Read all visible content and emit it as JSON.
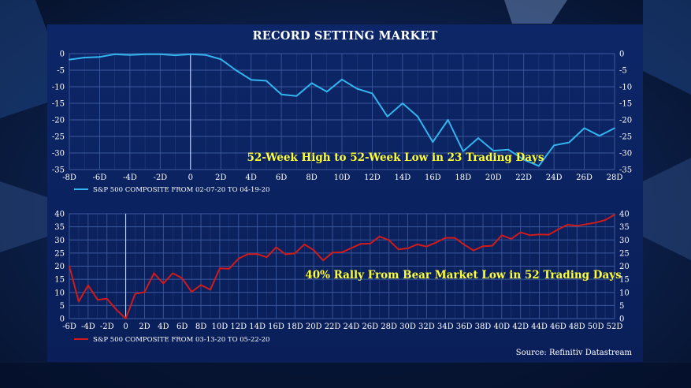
{
  "page": {
    "title": "RECORD SETTING MARKET",
    "source": "Source: Refinitiv Datastream"
  },
  "colors": {
    "panel": "#0b2161",
    "grid": "#3d5a9e",
    "series1": "#33b5f0",
    "series2": "#d11a1a",
    "annotation": "#ffff33"
  },
  "chart_data": [
    {
      "type": "line",
      "title": "",
      "x": [
        -8,
        -7,
        -6,
        -5,
        -4,
        -3,
        -2,
        -1,
        0,
        1,
        2,
        3,
        4,
        5,
        6,
        7,
        8,
        9,
        10,
        11,
        12,
        13,
        14,
        15,
        16,
        17,
        18,
        19,
        20,
        21,
        22,
        23,
        24,
        25,
        26,
        27,
        28
      ],
      "x_ticks": [
        -8,
        -6,
        -4,
        -2,
        0,
        2,
        4,
        6,
        8,
        10,
        12,
        14,
        16,
        18,
        20,
        22,
        24,
        26,
        28
      ],
      "x_tick_labels": [
        "-8D",
        "-6D",
        "-4D",
        "-2D",
        "0",
        "2D",
        "4D",
        "6D",
        "8D",
        "10D",
        "12D",
        "14D",
        "16D",
        "18D",
        "20D",
        "22D",
        "24D",
        "26D",
        "28D"
      ],
      "xlim": [
        -8,
        28
      ],
      "ylim": [
        -35,
        0
      ],
      "y_ticks": [
        0,
        -5,
        -10,
        -15,
        -20,
        -25,
        -30,
        -35
      ],
      "y_tick_labels": [
        "0",
        "-5",
        "-10",
        "-15",
        "-20",
        "-25",
        "-30",
        "-35"
      ],
      "series": [
        {
          "name": "S&P 500 COMPOSITE FROM 02-07-20 TO 04-19-20",
          "color": "#33b5f0",
          "values": [
            -1.8,
            -1.2,
            -1.0,
            -0.2,
            -0.4,
            -0.2,
            -0.2,
            -0.5,
            -0.2,
            -0.4,
            -1.7,
            -5.0,
            -7.9,
            -8.2,
            -12.3,
            -12.8,
            -8.9,
            -11.5,
            -7.8,
            -10.6,
            -12.0,
            -19.0,
            -15.0,
            -19.0,
            -26.7,
            -20.0,
            -29.5,
            -25.5,
            -29.3,
            -29.0,
            -32.0,
            -33.9,
            -27.7,
            -26.8,
            -22.5,
            -24.8,
            -22.5
          ]
        }
      ],
      "annotation": "52-Week High to 52-Week Low in 23 Trading Days",
      "grid": true,
      "legend": "bottom-left"
    },
    {
      "type": "line",
      "title": "",
      "x": [
        -6,
        -5,
        -4,
        -3,
        -2,
        -1,
        0,
        1,
        2,
        3,
        4,
        5,
        6,
        7,
        8,
        9,
        10,
        11,
        12,
        13,
        14,
        15,
        16,
        17,
        18,
        19,
        20,
        21,
        22,
        23,
        24,
        25,
        26,
        27,
        28,
        29,
        30,
        31,
        32,
        33,
        34,
        35,
        36,
        37,
        38,
        39,
        40,
        41,
        42,
        43,
        44,
        45,
        46,
        47,
        48,
        49,
        50,
        51,
        52
      ],
      "x_ticks": [
        -6,
        -4,
        -2,
        0,
        2,
        4,
        6,
        8,
        10,
        12,
        14,
        16,
        18,
        20,
        22,
        24,
        26,
        28,
        30,
        32,
        34,
        36,
        38,
        40,
        42,
        44,
        46,
        48,
        50,
        52
      ],
      "x_tick_labels": [
        "-6D",
        "-4D",
        "-2D",
        "0",
        "2D",
        "4D",
        "6D",
        "8D",
        "10D",
        "12D",
        "14D",
        "16D",
        "18D",
        "20D",
        "22D",
        "24D",
        "26D",
        "28D",
        "30D",
        "32D",
        "34D",
        "36D",
        "38D",
        "40D",
        "42D",
        "44D",
        "46D",
        "48D",
        "50D",
        "52D"
      ],
      "xlim": [
        -6,
        52
      ],
      "ylim": [
        0,
        40
      ],
      "y_ticks": [
        0,
        5,
        10,
        15,
        20,
        25,
        30,
        35,
        40
      ],
      "y_tick_labels": [
        "0",
        "5",
        "10",
        "15",
        "20",
        "25",
        "30",
        "35",
        "40"
      ],
      "series": [
        {
          "name": "S&P 500 COMPOSITE FROM 03-13-20 TO 05-22-20",
          "color": "#d11a1a",
          "values": [
            20,
            6.5,
            12.7,
            7.2,
            7.6,
            3.4,
            0,
            9.4,
            10.1,
            17.3,
            13.4,
            17.3,
            15.4,
            10.2,
            12.8,
            11.0,
            19.2,
            19.0,
            22.9,
            24.6,
            24.6,
            23.4,
            27.2,
            24.5,
            24.9,
            28.3,
            26.1,
            22.2,
            25.2,
            25.3,
            26.9,
            28.5,
            28.6,
            31.3,
            29.9,
            26.4,
            26.8,
            28.3,
            27.5,
            29.0,
            30.8,
            30.8,
            28.2,
            26.0,
            27.6,
            27.8,
            31.8,
            30.4,
            32.9,
            31.8,
            32.1,
            32.0,
            34.0,
            35.8,
            35.4,
            36.0,
            36.6,
            37.6,
            39.6
          ]
        }
      ],
      "annotation": "40% Rally From Bear Market Low in 52 Trading Days",
      "grid": true,
      "legend": "bottom-left"
    }
  ]
}
